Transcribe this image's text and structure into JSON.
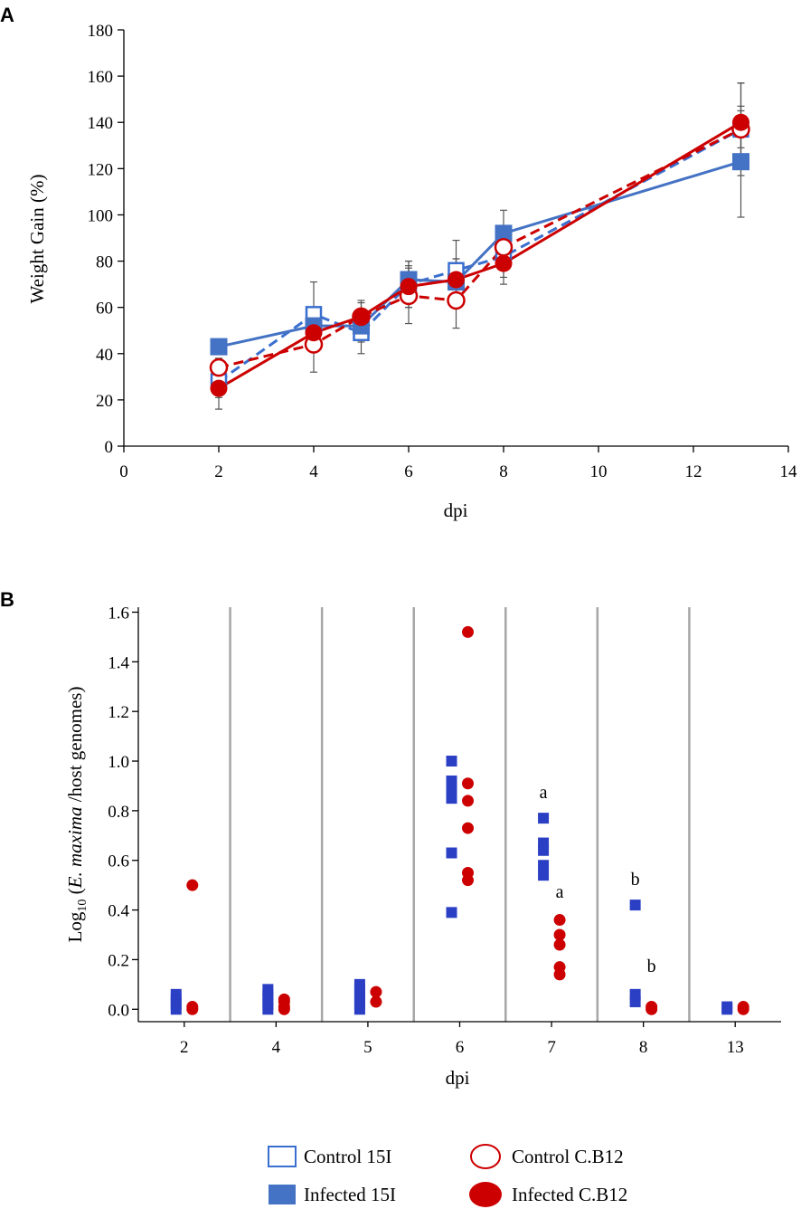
{
  "colors": {
    "blue_stroke": "#3a6fd0",
    "blue_fill": "#4472c4",
    "blue_marker_B": "#2b3fc4",
    "red": "#cc0000",
    "axis": "#000000",
    "error_bar": "#555555",
    "separator": "#a6a6a6"
  },
  "chart_data": [
    {
      "panel": "A",
      "type": "line",
      "title": "",
      "xlabel": "dpi",
      "ylabel": "Weight Gain (%)",
      "xlim": [
        0,
        14
      ],
      "ylim": [
        0,
        180
      ],
      "x_ticks": [
        0,
        2,
        4,
        6,
        8,
        10,
        12,
        14
      ],
      "y_ticks": [
        0,
        20,
        40,
        60,
        80,
        100,
        120,
        140,
        160,
        180
      ],
      "series": [
        {
          "name": "Control 15I",
          "style": "dashed",
          "marker": "open-square",
          "color_key": "blue_stroke",
          "x": [
            2,
            4,
            5,
            6,
            7,
            8,
            13
          ],
          "y": [
            28,
            57,
            49,
            70,
            76,
            82,
            137
          ],
          "err": [
            7,
            14,
            9,
            10,
            13,
            9,
            20
          ]
        },
        {
          "name": "Infected 15I",
          "style": "solid",
          "marker": "filled-square",
          "color_key": "blue_fill",
          "x": [
            2,
            4,
            5,
            6,
            7,
            8,
            13
          ],
          "y": [
            43,
            52,
            52,
            72,
            71,
            92,
            123
          ],
          "err": [
            0,
            6,
            7,
            8,
            10,
            10,
            24
          ]
        },
        {
          "name": "Control C.B12",
          "style": "dashed",
          "marker": "open-circle",
          "color_key": "red",
          "x": [
            2,
            4,
            5,
            6,
            7,
            8,
            13
          ],
          "y": [
            34,
            44,
            56,
            65,
            63,
            86,
            137
          ],
          "err": [
            4,
            12,
            7,
            12,
            12,
            9,
            8
          ]
        },
        {
          "name": "Infected C.B12",
          "style": "solid",
          "marker": "filled-circle",
          "color_key": "red",
          "x": [
            2,
            4,
            5,
            6,
            7,
            8,
            13
          ],
          "y": [
            25,
            49,
            56,
            69,
            72,
            79,
            140
          ],
          "err": [
            9,
            7,
            6,
            9,
            9,
            9,
            17
          ]
        }
      ]
    },
    {
      "panel": "B",
      "type": "scatter",
      "title": "",
      "xlabel": "dpi",
      "ylabel": {
        "prefix": "Log",
        "subscript": "10",
        "paren_open": " (",
        "italic": "E. maxima",
        "rest": " /host genomes)"
      },
      "ylim": [
        -0.05,
        1.62
      ],
      "y_ticks": [
        "0.0",
        "0.2",
        "0.4",
        "0.6",
        "0.8",
        "1.0",
        "1.2",
        "1.4",
        "1.6"
      ],
      "categories": [
        "2",
        "4",
        "5",
        "6",
        "7",
        "8",
        "13"
      ],
      "series": [
        {
          "name": "Infected 15I",
          "marker": "square",
          "color_key": "blue_marker_B",
          "points": [
            {
              "category": "2",
              "values": [
                0.0,
                0.02,
                0.04,
                0.06
              ]
            },
            {
              "category": "4",
              "values": [
                0.0,
                0.02,
                0.04,
                0.06,
                0.08
              ]
            },
            {
              "category": "5",
              "values": [
                0.0,
                0.02,
                0.04,
                0.06,
                0.08,
                0.1
              ]
            },
            {
              "category": "6",
              "values": [
                0.39,
                0.63,
                0.85,
                0.88,
                0.92,
                1.0
              ]
            },
            {
              "category": "7",
              "values": [
                0.54,
                0.58,
                0.64,
                0.67,
                0.77
              ]
            },
            {
              "category": "8",
              "values": [
                0.03,
                0.06,
                0.42
              ]
            },
            {
              "category": "13",
              "values": [
                0.0,
                0.01
              ]
            }
          ]
        },
        {
          "name": "Infected C.B12",
          "marker": "circle",
          "color_key": "red",
          "points": [
            {
              "category": "2",
              "values": [
                0.0,
                0.01,
                0.5
              ]
            },
            {
              "category": "4",
              "values": [
                0.0,
                0.01,
                0.03,
                0.04
              ]
            },
            {
              "category": "5",
              "values": [
                0.03,
                0.07
              ]
            },
            {
              "category": "6",
              "values": [
                0.52,
                0.55,
                0.73,
                0.84,
                0.91,
                1.52
              ]
            },
            {
              "category": "7",
              "values": [
                0.14,
                0.17,
                0.26,
                0.3,
                0.36
              ]
            },
            {
              "category": "8",
              "values": [
                0.0,
                0.01
              ]
            },
            {
              "category": "13",
              "values": [
                0.0,
                0.01
              ]
            }
          ]
        }
      ],
      "annotations": [
        {
          "text": "a",
          "category": "7",
          "series": "Infected 15I",
          "y": 0.85
        },
        {
          "text": "a",
          "category": "7",
          "series": "Infected C.B12",
          "y": 0.45
        },
        {
          "text": "b",
          "category": "8",
          "series": "Infected 15I",
          "y": 0.5
        },
        {
          "text": "b",
          "category": "8",
          "series": "Infected C.B12",
          "y": 0.15
        }
      ]
    }
  ],
  "panel_labels": {
    "a": "A",
    "b": "B"
  },
  "legend": [
    {
      "label": "Control 15I",
      "marker": "open-square"
    },
    {
      "label": "Control C.B12",
      "marker": "open-circle"
    },
    {
      "label": "Infected 15I",
      "marker": "filled-square"
    },
    {
      "label": "Infected C.B12",
      "marker": "filled-circle"
    }
  ]
}
